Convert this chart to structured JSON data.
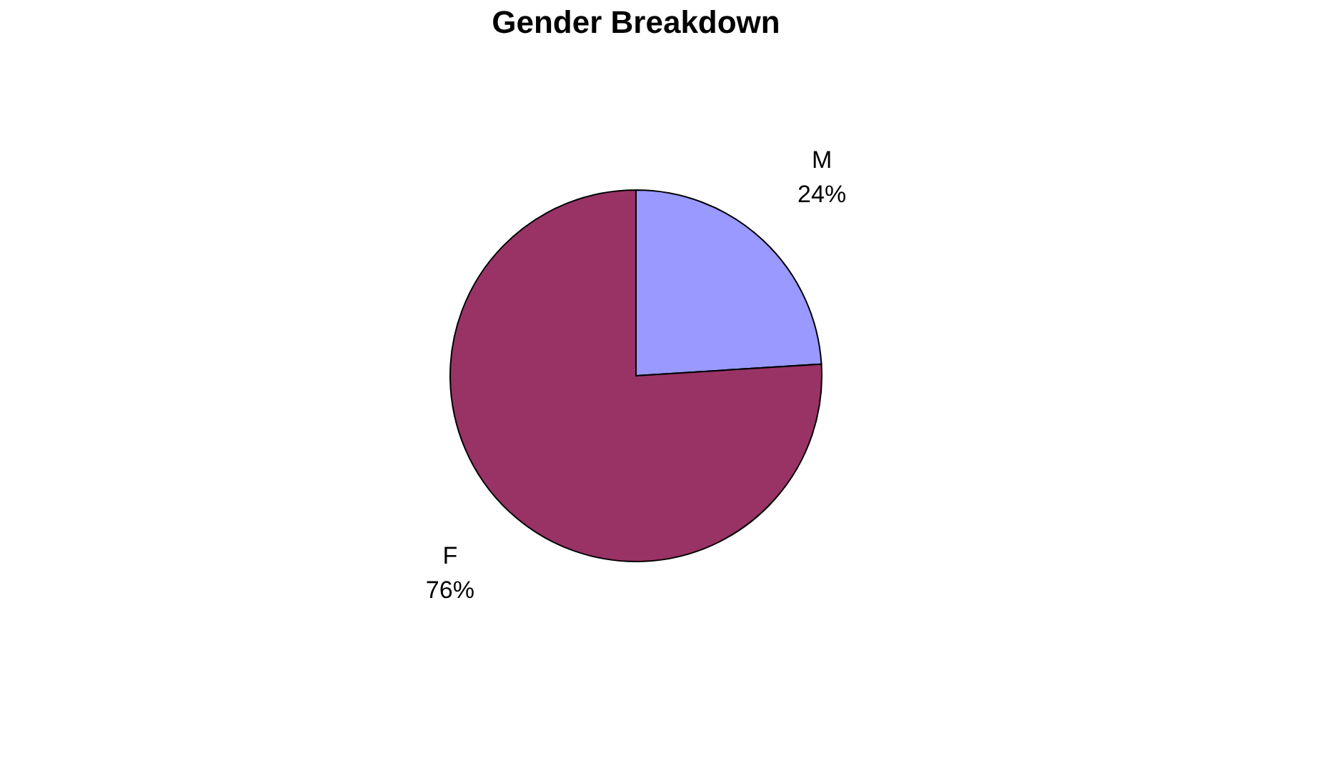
{
  "chart_data": {
    "type": "pie",
    "title": "Gender Breakdown",
    "categories": [
      "M",
      "F"
    ],
    "values": [
      24,
      76
    ],
    "colors": [
      "#9999ff",
      "#993366"
    ],
    "value_labels": [
      "24%",
      "76%"
    ],
    "legend": false
  }
}
